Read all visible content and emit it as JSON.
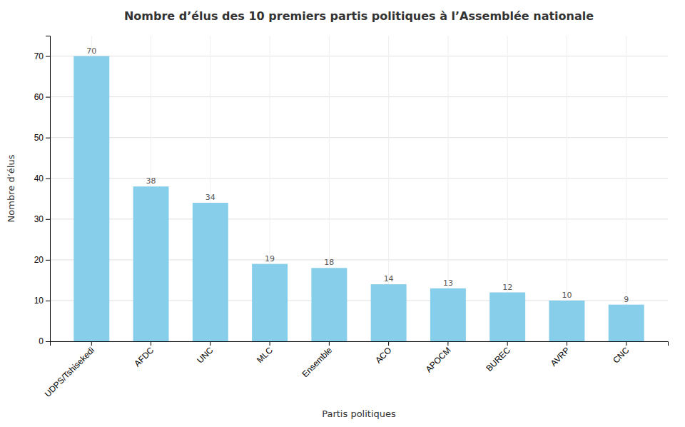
{
  "chart_data": {
    "type": "bar",
    "title": "Nombre d’élus des 10 premiers partis politiques à l’Assemblée nationale",
    "x_label": "Partis politiques",
    "y_label": "Nombre d’élus",
    "categories": [
      "UDPS/Tshisekedi",
      "AFDC",
      "UNC",
      "MLC",
      "Ensemble",
      "ACO",
      "APOCM",
      "BUREC",
      "AVRP",
      "CNC"
    ],
    "values": [
      70,
      38,
      34,
      19,
      18,
      14,
      13,
      12,
      10,
      9
    ],
    "color": "#87CEEB",
    "ylim": [
      0,
      75
    ],
    "yticks": [
      0,
      10,
      20,
      30,
      40,
      50,
      60,
      70
    ],
    "grid": true,
    "data_labels": true
  }
}
